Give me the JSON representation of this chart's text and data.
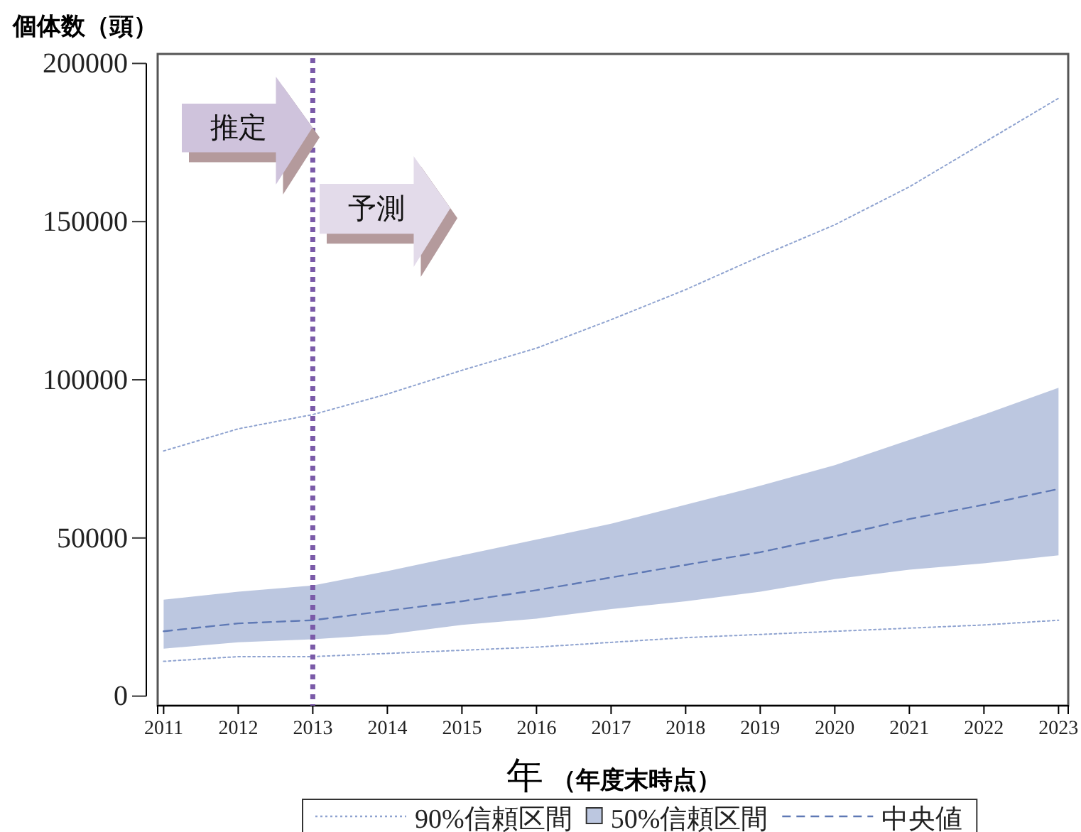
{
  "chart_data": {
    "type": "line",
    "xlabel": "年 （年度末時点）",
    "ylabel": "個体数（頭）",
    "x": [
      2011,
      2012,
      2013,
      2014,
      2015,
      2016,
      2017,
      2018,
      2019,
      2020,
      2021,
      2022,
      2023
    ],
    "series": [
      {
        "name": "90%信頼区間",
        "type": "line",
        "line_style": "dotted",
        "color": "#8fa3d0",
        "values": [
          77500,
          84500,
          89000,
          95500,
          103000,
          110000,
          119000,
          128500,
          139000,
          149000,
          161000,
          175000,
          189000
        ]
      },
      {
        "type": "line",
        "line_style": "dotted",
        "color": "#8fa3d0",
        "values": [
          11000,
          12500,
          12500,
          13500,
          14500,
          15500,
          17000,
          18500,
          19500,
          20500,
          21500,
          22500,
          24000
        ]
      },
      {
        "name": "中央値",
        "line_style": "dashed",
        "color": "#5f79b5",
        "values": [
          20500,
          23000,
          24000,
          27000,
          30000,
          33500,
          37500,
          41500,
          45500,
          50500,
          56000,
          60500,
          65500
        ],
        "lower": [
          15000,
          17000,
          18000,
          19500,
          22500,
          24500,
          27500,
          30000,
          33000,
          37000,
          40000,
          42000,
          44500
        ],
        "upper": [
          30500,
          33000,
          35000,
          39500,
          44500,
          49500,
          54500,
          60500,
          66500,
          73000,
          81000,
          89000,
          97500
        ]
      }
    ],
    "xlim": [
      2010.92,
      2023.13
    ],
    "xticks": [
      2011,
      2012,
      2013,
      2014,
      2015,
      2016,
      2017,
      2018,
      2019,
      2020,
      2021,
      2022,
      2023
    ],
    "ylim": [
      -3000,
      203000
    ],
    "yticks": [
      0,
      50000,
      100000,
      150000,
      200000
    ],
    "ref_lines": [
      {
        "axis": "x",
        "value": 2013,
        "color": "#7a5aa8",
        "line_style": "dotted"
      }
    ],
    "annotations": [
      "推定",
      "予測",
      "50%信頼区間"
    ],
    "legend": "bottom",
    "grid": false
  }
}
